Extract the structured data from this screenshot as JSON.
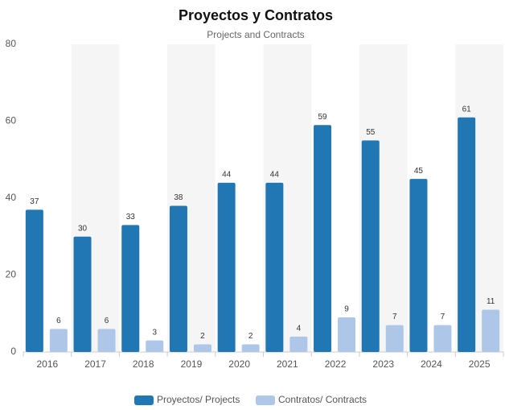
{
  "chart_data": {
    "type": "bar",
    "title": "Proyectos y Contratos",
    "subtitle": "Projects and Contracts",
    "categories": [
      "2016",
      "2017",
      "2018",
      "2019",
      "2020",
      "2021",
      "2022",
      "2023",
      "2024",
      "2025"
    ],
    "series": [
      {
        "name": "Proyectos/ Projects",
        "color": "#2077b4",
        "values": [
          37,
          30,
          33,
          38,
          44,
          44,
          59,
          55,
          45,
          61
        ]
      },
      {
        "name": "Contratos/ Contracts",
        "color": "#aec7e8",
        "values": [
          6,
          6,
          3,
          2,
          2,
          4,
          9,
          7,
          7,
          11
        ]
      }
    ],
    "ylim": [
      0,
      80
    ],
    "yticks": [
      0,
      20,
      40,
      60,
      80
    ],
    "alternate_bands": true,
    "data_labels": true,
    "legend": "bottom"
  }
}
